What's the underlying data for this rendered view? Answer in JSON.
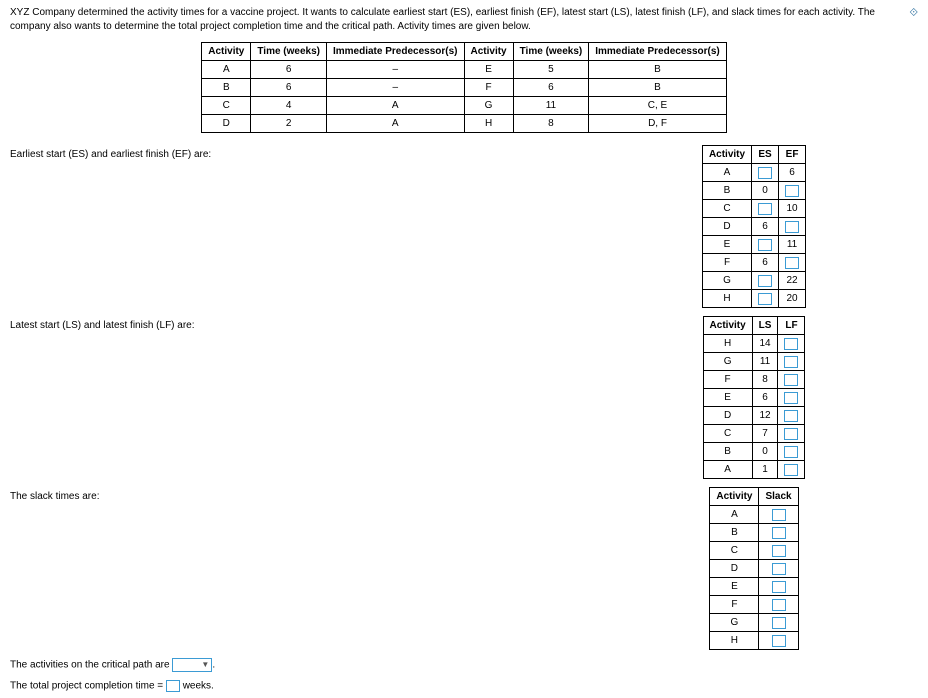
{
  "problem": "XYZ Company determined the activity times for a vaccine project. It wants to calculate earliest start (ES), earliest finish (EF), latest start (LS), latest finish (LF), and slack times for each activity. The company also wants to determine the total project completion time and the critical path. Activity times are given below.",
  "given": {
    "headers": [
      "Activity",
      "Time (weeks)",
      "Immediate Predecessor(s)",
      "Activity",
      "Time (weeks)",
      "Immediate Predecessor(s)"
    ],
    "rows": [
      [
        "A",
        "6",
        "–",
        "E",
        "5",
        "B"
      ],
      [
        "B",
        "6",
        "–",
        "F",
        "6",
        "B"
      ],
      [
        "C",
        "4",
        "A",
        "G",
        "11",
        "C, E"
      ],
      [
        "D",
        "2",
        "A",
        "H",
        "8",
        "D, F"
      ]
    ]
  },
  "es_ef": {
    "label": "Earliest start (ES) and earliest finish (EF) are:",
    "headers": [
      "Activity",
      "ES",
      "EF"
    ],
    "rows": [
      {
        "a": "A",
        "es": "",
        "ef": "6"
      },
      {
        "a": "B",
        "es": "0",
        "ef": ""
      },
      {
        "a": "C",
        "es": "",
        "ef": "10"
      },
      {
        "a": "D",
        "es": "6",
        "ef": ""
      },
      {
        "a": "E",
        "es": "",
        "ef": "11"
      },
      {
        "a": "F",
        "es": "6",
        "ef": ""
      },
      {
        "a": "G",
        "es": "",
        "ef": "22"
      },
      {
        "a": "H",
        "es": "",
        "ef": "20"
      }
    ]
  },
  "ls_lf": {
    "label": "Latest start (LS) and latest finish (LF) are:",
    "headers": [
      "Activity",
      "LS",
      "LF"
    ],
    "rows": [
      {
        "a": "H",
        "ls": "14"
      },
      {
        "a": "G",
        "ls": "11"
      },
      {
        "a": "F",
        "ls": "8"
      },
      {
        "a": "E",
        "ls": "6"
      },
      {
        "a": "D",
        "ls": "12"
      },
      {
        "a": "C",
        "ls": "7"
      },
      {
        "a": "B",
        "ls": "0"
      },
      {
        "a": "A",
        "ls": "1"
      }
    ]
  },
  "slack": {
    "label": "The slack times are:",
    "headers": [
      "Activity",
      "Slack"
    ],
    "rows": [
      "A",
      "B",
      "C",
      "D",
      "E",
      "F",
      "G",
      "H"
    ]
  },
  "critical_label": "The activities on the critical path are",
  "completion_prefix": "The total project completion time =",
  "completion_suffix": "weeks."
}
